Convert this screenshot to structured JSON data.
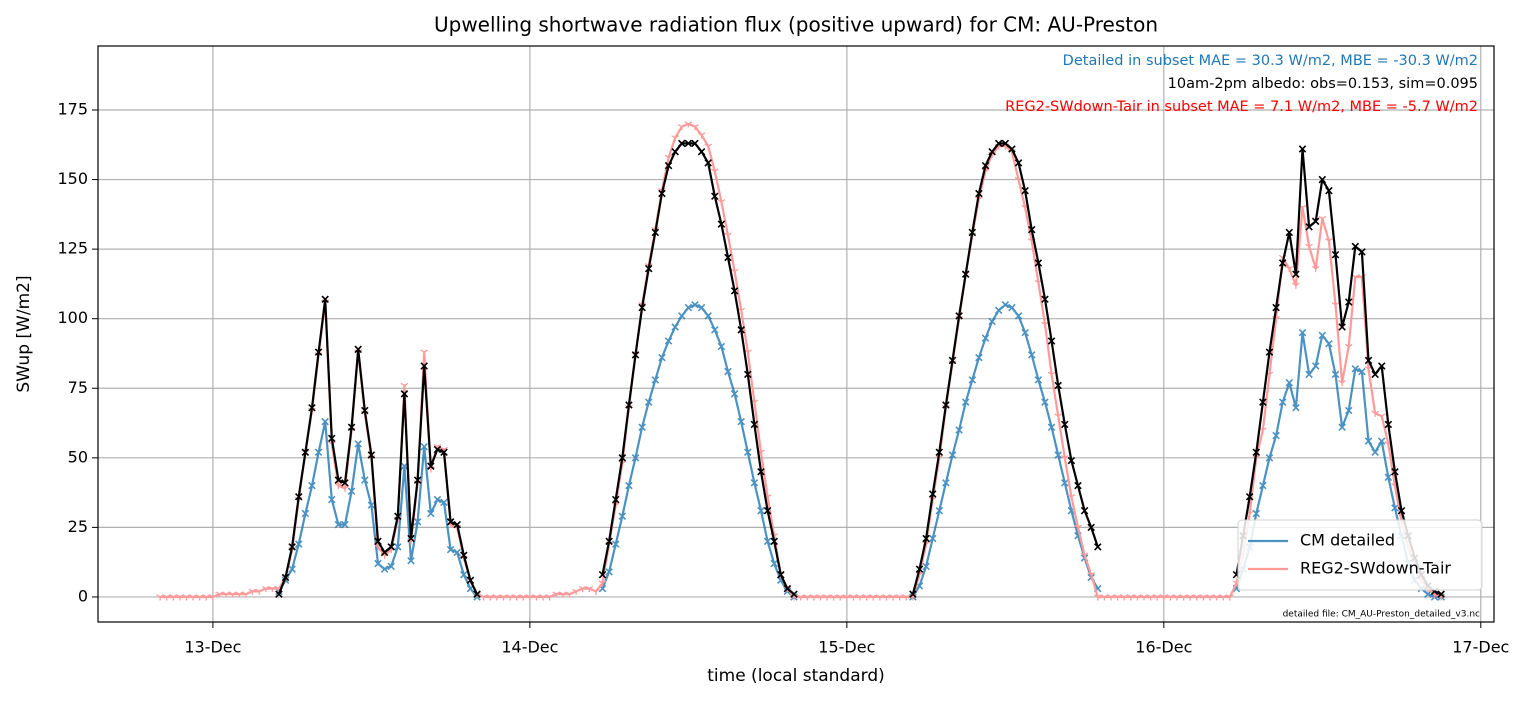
{
  "chart_data": {
    "type": "line",
    "title": "Upwelling shortwave radiation flux (positive upward) for CM: AU-Preston",
    "xlabel": "time (local standard)",
    "ylabel": "SWup [W/m2]",
    "annotations": [
      {
        "text": "Detailed in subset MAE = 30.3 W/m2, MBE = -30.3 W/m2",
        "color": "#1f77b4"
      },
      {
        "text": "10am-2pm albedo: obs=0.153, sim=0.095",
        "color": "#000000"
      },
      {
        "text": "REG2-SWdown-Tair in subset MAE = 7.1 W/m2, MBE = -5.7 W/m2",
        "color": "#ff0000"
      }
    ],
    "footnote": "detailed file: CM_AU-Preston_detailed_v3.nc",
    "xlim": [
      -8.7,
      97
    ],
    "xticks": [
      {
        "value": 0,
        "label": "13-Dec"
      },
      {
        "value": 24,
        "label": "14-Dec"
      },
      {
        "value": 48,
        "label": "15-Dec"
      },
      {
        "value": 72,
        "label": "16-Dec"
      },
      {
        "value": 96,
        "label": "17-Dec"
      }
    ],
    "ylim": [
      -9,
      198
    ],
    "yticks": [
      0,
      25,
      50,
      75,
      100,
      125,
      150,
      175
    ],
    "grid": true,
    "legend": "lower right",
    "x": [
      -4,
      -3.5,
      -3,
      -2.5,
      -2,
      -1.5,
      -1,
      -0.5,
      0,
      0.5,
      1,
      1.5,
      2,
      2.5,
      3,
      3.5,
      4,
      4.5,
      5,
      5.5,
      6,
      6.5,
      7,
      7.5,
      8,
      8.5,
      9,
      9.5,
      10,
      10.5,
      11,
      11.5,
      12,
      12.5,
      13,
      13.5,
      14,
      14.5,
      15,
      15.5,
      16,
      16.5,
      17,
      17.5,
      18,
      18.5,
      19,
      19.5,
      20,
      20.5,
      21,
      21.5,
      22,
      22.5,
      23,
      23.5,
      24,
      24.5,
      25,
      25.5,
      26,
      26.5,
      27,
      27.5,
      28,
      28.5,
      29,
      29.5,
      30,
      30.5,
      31,
      31.5,
      32,
      32.5,
      33,
      33.5,
      34,
      34.5,
      35,
      35.5,
      36,
      36.5,
      37,
      37.5,
      38,
      38.5,
      39,
      39.5,
      40,
      40.5,
      41,
      41.5,
      42,
      42.5,
      43,
      43.5,
      44,
      44.5,
      45,
      45.5,
      46,
      46.5,
      47,
      47.5,
      48,
      48.5,
      49,
      49.5,
      50,
      50.5,
      51,
      51.5,
      52,
      52.5,
      53,
      53.5,
      54,
      54.5,
      55,
      55.5,
      56,
      56.5,
      57,
      57.5,
      58,
      58.5,
      59,
      59.5,
      60,
      60.5,
      61,
      61.5,
      62,
      62.5,
      63,
      63.5,
      64,
      64.5,
      65,
      65.5,
      66,
      66.5,
      67,
      67.5,
      68,
      68.5,
      69,
      69.5,
      70,
      70.5,
      71,
      71.5,
      72,
      72.5,
      73,
      73.5,
      74,
      74.5,
      75,
      75.5,
      76,
      76.5,
      77,
      77.5,
      78,
      78.5,
      79,
      79.5,
      80,
      80.5,
      81,
      81.5,
      82,
      82.5,
      83,
      83.5,
      84,
      84.5,
      85,
      85.5,
      86,
      86.5,
      87,
      87.5,
      88,
      88.5,
      89,
      89.5,
      90,
      90.5,
      91,
      91.5,
      92,
      92.5,
      93
    ],
    "series": [
      {
        "name": "CM detailed",
        "color": "#1f77b4",
        "marker": "x",
        "values": [
          null,
          null,
          null,
          null,
          null,
          null,
          null,
          null,
          null,
          null,
          null,
          null,
          null,
          null,
          null,
          null,
          null,
          null,
          2,
          6,
          10,
          19,
          30,
          40,
          52,
          63,
          35,
          26,
          26,
          38,
          55,
          42,
          33,
          12,
          10,
          11,
          18,
          47,
          13,
          27,
          54,
          30,
          35,
          34,
          17,
          16,
          8,
          3,
          0,
          null,
          null,
          null,
          null,
          null,
          null,
          null,
          null,
          null,
          null,
          null,
          null,
          null,
          null,
          null,
          null,
          null,
          null,
          3,
          9,
          19,
          29,
          40,
          50,
          61,
          70,
          78,
          86,
          92,
          97,
          101,
          104,
          105,
          104,
          101,
          96,
          90,
          81,
          73,
          63,
          52,
          41,
          31,
          20,
          12,
          6,
          2,
          0,
          null,
          null,
          null,
          null,
          null,
          null,
          null,
          null,
          null,
          null,
          null,
          null,
          null,
          null,
          null,
          null,
          null,
          0,
          4,
          11,
          21,
          31,
          41,
          51,
          60,
          70,
          78,
          86,
          93,
          99,
          103,
          105,
          104,
          101,
          95,
          87,
          78,
          70,
          61,
          51,
          41,
          31,
          22,
          14,
          7,
          3,
          null,
          null,
          null,
          null,
          null,
          null,
          null,
          null,
          null,
          null,
          null,
          null,
          null,
          null,
          null,
          null,
          null,
          null,
          null,
          null,
          3,
          10,
          18,
          30,
          40,
          50,
          58,
          70,
          77,
          68,
          95,
          80,
          83,
          94,
          91,
          80,
          61,
          67,
          82,
          81,
          56,
          52,
          56,
          43,
          32,
          22,
          12,
          6,
          3,
          1,
          0,
          0
        ]
      },
      {
        "name": "REG2-SWdown-Tair",
        "color": "#ff9a9a",
        "marker": "tri",
        "values": [
          0,
          0,
          0,
          0,
          0,
          0,
          0,
          0,
          0,
          1,
          1,
          1,
          1,
          1,
          2,
          2,
          3,
          3,
          3,
          7,
          17,
          35,
          52,
          67,
          87,
          106,
          55,
          40,
          39,
          60,
          88,
          66,
          50,
          18,
          15,
          17,
          28,
          76,
          20,
          41,
          88,
          46,
          54,
          53,
          26,
          25,
          14,
          6,
          1,
          0,
          0,
          0,
          0,
          0,
          0,
          0,
          0,
          0,
          0,
          0,
          1,
          1,
          1,
          2,
          3,
          3,
          2,
          5,
          19,
          33,
          48,
          68,
          87,
          105,
          119,
          132,
          146,
          158,
          165,
          169,
          170,
          169,
          166,
          162,
          153,
          142,
          130,
          117,
          103,
          88,
          70,
          52,
          36,
          22,
          8,
          3,
          0,
          0,
          0,
          0,
          0,
          0,
          0,
          0,
          0,
          0,
          0,
          0,
          0,
          0,
          0,
          0,
          0,
          0,
          0,
          8,
          19,
          35,
          50,
          68,
          84,
          100,
          116,
          130,
          143,
          153,
          159,
          162,
          162,
          160,
          150,
          140,
          128,
          113,
          98,
          80,
          65,
          50,
          36,
          25,
          15,
          8,
          0,
          0,
          0,
          0,
          0,
          0,
          0,
          0,
          0,
          0,
          0,
          0,
          0,
          0,
          0,
          0,
          0,
          0,
          0,
          0,
          0,
          5,
          15,
          30,
          50,
          60,
          80,
          100,
          122,
          118,
          112,
          140,
          126,
          118,
          136,
          128,
          105,
          77,
          90,
          115,
          115,
          82,
          66,
          65,
          55,
          40,
          27,
          18,
          11,
          6,
          3,
          1,
          0
        ]
      },
      {
        "color": "#000000",
        "marker": "x",
        "values": [
          null,
          null,
          null,
          null,
          null,
          null,
          null,
          null,
          null,
          null,
          null,
          null,
          null,
          null,
          null,
          null,
          null,
          null,
          1,
          7,
          18,
          36,
          52,
          68,
          88,
          107,
          57,
          42,
          41,
          61,
          89,
          67,
          51,
          20,
          16,
          18,
          29,
          73,
          21,
          42,
          83,
          47,
          53,
          52,
          27,
          26,
          15,
          6,
          1,
          null,
          null,
          null,
          null,
          null,
          null,
          null,
          null,
          null,
          null,
          null,
          null,
          null,
          null,
          null,
          null,
          null,
          null,
          8,
          20,
          35,
          50,
          69,
          87,
          104,
          118,
          131,
          145,
          155,
          160,
          163,
          163,
          163,
          160,
          156,
          144,
          134,
          122,
          110,
          96,
          80,
          62,
          45,
          31,
          20,
          8,
          3,
          1,
          null,
          null,
          null,
          null,
          null,
          null,
          null,
          null,
          null,
          null,
          null,
          null,
          null,
          null,
          null,
          null,
          null,
          1,
          10,
          21,
          37,
          52,
          69,
          85,
          101,
          116,
          131,
          145,
          155,
          160,
          163,
          163,
          161,
          156,
          146,
          132,
          120,
          107,
          92,
          76,
          62,
          49,
          40,
          31,
          25,
          18,
          null,
          null,
          null,
          null,
          null,
          null,
          null,
          null,
          null,
          null,
          null,
          null,
          null,
          null,
          null,
          null,
          null,
          null,
          null,
          null,
          8,
          22,
          36,
          52,
          70,
          88,
          104,
          120,
          131,
          116,
          161,
          133,
          135,
          150,
          146,
          123,
          97,
          106,
          126,
          124,
          85,
          80,
          83,
          62,
          45,
          31,
          22,
          14,
          8,
          4,
          2,
          1
        ]
      }
    ]
  }
}
